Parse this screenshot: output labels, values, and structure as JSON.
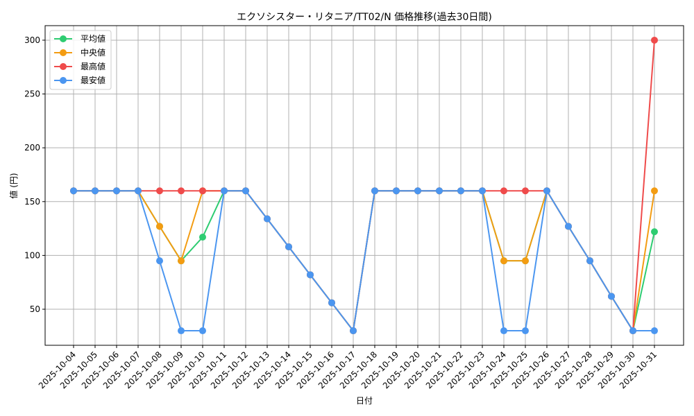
{
  "chart_data": {
    "type": "line",
    "title": "エクソシスター・リタニア/TT02/N 価格推移(過去30日間)",
    "xlabel": "日付",
    "ylabel": "値 (円)",
    "ylim": [
      16.5,
      313.5
    ],
    "yticks": [
      50,
      100,
      150,
      200,
      250,
      300
    ],
    "grid": true,
    "legend_position": "upper left",
    "categories": [
      "2025-10-04",
      "2025-10-05",
      "2025-10-06",
      "2025-10-07",
      "2025-10-08",
      "2025-10-09",
      "2025-10-10",
      "2025-10-11",
      "2025-10-12",
      "2025-10-13",
      "2025-10-14",
      "2025-10-15",
      "2025-10-16",
      "2025-10-17",
      "2025-10-18",
      "2025-10-19",
      "2025-10-20",
      "2025-10-21",
      "2025-10-22",
      "2025-10-23",
      "2025-10-24",
      "2025-10-25",
      "2025-10-26",
      "2025-10-27",
      "2025-10-28",
      "2025-10-29",
      "2025-10-30",
      "2025-10-31"
    ],
    "series": [
      {
        "name": "平均値",
        "color": "#2ecc71",
        "values": [
          160,
          160,
          160,
          160,
          127,
          95,
          117,
          160,
          160,
          134,
          108,
          82,
          56,
          30,
          160,
          160,
          160,
          160,
          160,
          160,
          95,
          95,
          160,
          127,
          95,
          62,
          30,
          122
        ]
      },
      {
        "name": "中央値",
        "color": "#f39c12",
        "values": [
          160,
          160,
          160,
          160,
          127,
          95,
          160,
          160,
          160,
          134,
          108,
          82,
          56,
          30,
          160,
          160,
          160,
          160,
          160,
          160,
          95,
          95,
          160,
          127,
          95,
          62,
          30,
          160
        ]
      },
      {
        "name": "最高値",
        "color": "#ef4b4b",
        "values": [
          160,
          160,
          160,
          160,
          160,
          160,
          160,
          160,
          160,
          134,
          108,
          82,
          56,
          30,
          160,
          160,
          160,
          160,
          160,
          160,
          160,
          160,
          160,
          127,
          95,
          62,
          30,
          300
        ]
      },
      {
        "name": "最安値",
        "color": "#4b96f0",
        "values": [
          160,
          160,
          160,
          160,
          95,
          30,
          30,
          160,
          160,
          134,
          108,
          82,
          56,
          30,
          160,
          160,
          160,
          160,
          160,
          160,
          30,
          30,
          160,
          127,
          95,
          62,
          30,
          30
        ]
      }
    ]
  }
}
